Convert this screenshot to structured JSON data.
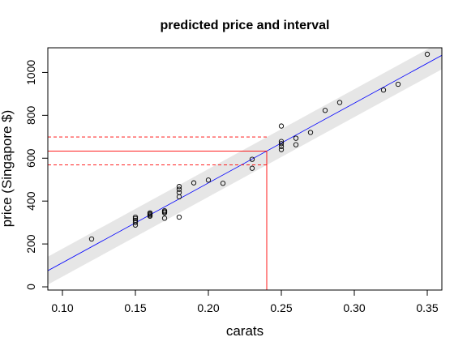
{
  "chart_data": {
    "type": "scatter",
    "title": "predicted price and interval",
    "xlabel": "carats",
    "ylabel": "price (Singapore $)",
    "xlim": [
      0.09,
      0.36
    ],
    "ylim": [
      -15,
      1115
    ],
    "x_ticks": [
      0.1,
      0.15,
      0.2,
      0.25,
      0.3,
      0.35
    ],
    "x_tick_labels": [
      "0.10",
      "0.15",
      "0.20",
      "0.25",
      "0.30",
      "0.35"
    ],
    "y_ticks": [
      0,
      200,
      400,
      600,
      800,
      1000
    ],
    "y_tick_labels": [
      "0",
      "200",
      "400",
      "600",
      "800",
      "1000"
    ],
    "grid": false,
    "points": [
      {
        "x": 0.12,
        "y": 223
      },
      {
        "x": 0.15,
        "y": 288
      },
      {
        "x": 0.15,
        "y": 300
      },
      {
        "x": 0.15,
        "y": 310
      },
      {
        "x": 0.15,
        "y": 318
      },
      {
        "x": 0.15,
        "y": 325
      },
      {
        "x": 0.16,
        "y": 330
      },
      {
        "x": 0.16,
        "y": 335
      },
      {
        "x": 0.16,
        "y": 340
      },
      {
        "x": 0.16,
        "y": 345
      },
      {
        "x": 0.17,
        "y": 320
      },
      {
        "x": 0.17,
        "y": 345
      },
      {
        "x": 0.17,
        "y": 350
      },
      {
        "x": 0.17,
        "y": 355
      },
      {
        "x": 0.18,
        "y": 325
      },
      {
        "x": 0.18,
        "y": 420
      },
      {
        "x": 0.18,
        "y": 440
      },
      {
        "x": 0.18,
        "y": 455
      },
      {
        "x": 0.18,
        "y": 468
      },
      {
        "x": 0.19,
        "y": 485
      },
      {
        "x": 0.2,
        "y": 498
      },
      {
        "x": 0.21,
        "y": 483
      },
      {
        "x": 0.23,
        "y": 553
      },
      {
        "x": 0.23,
        "y": 595
      },
      {
        "x": 0.25,
        "y": 640
      },
      {
        "x": 0.25,
        "y": 655
      },
      {
        "x": 0.25,
        "y": 668
      },
      {
        "x": 0.25,
        "y": 678
      },
      {
        "x": 0.25,
        "y": 750
      },
      {
        "x": 0.26,
        "y": 663
      },
      {
        "x": 0.26,
        "y": 693
      },
      {
        "x": 0.27,
        "y": 720
      },
      {
        "x": 0.28,
        "y": 823
      },
      {
        "x": 0.29,
        "y": 860
      },
      {
        "x": 0.32,
        "y": 918
      },
      {
        "x": 0.33,
        "y": 945
      },
      {
        "x": 0.35,
        "y": 1085
      }
    ],
    "fit_line": {
      "intercept": -259.6,
      "slope": 3721.0,
      "color": "#0000ff"
    },
    "prediction_band_halfwidth": 65,
    "band_color": "#e6e6e6",
    "prediction": {
      "x": 0.24,
      "fit": 633.5,
      "lower": 569,
      "upper": 699,
      "color": "#ff0000"
    }
  }
}
